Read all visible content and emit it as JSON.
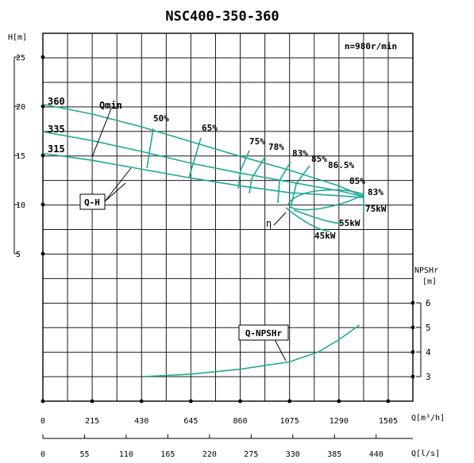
{
  "chart_data": {
    "type": "line",
    "title": "NSC400-350-360",
    "speed": "n=980r/min",
    "head_axis": {
      "unit": "H[m]",
      "ticks": [
        "25",
        "20",
        "15",
        "10",
        "5"
      ]
    },
    "npsh_axis": {
      "unit_top": "NPSHr",
      "unit_bottom": "[m]",
      "ticks": [
        "6",
        "5",
        "4",
        "3"
      ]
    },
    "x_axis_m3h": {
      "unit": "Q[m³/h]",
      "ticks": [
        "0",
        "215",
        "430",
        "645",
        "860",
        "1075",
        "1290",
        "1505"
      ]
    },
    "x_axis_ls": {
      "unit": "Q[l/s]",
      "ticks": [
        "0",
        "55",
        "110",
        "165",
        "220",
        "275",
        "330",
        "385",
        "440"
      ]
    },
    "impeller_labels": [
      "360",
      "335",
      "315"
    ],
    "qmin_label": "Qmin",
    "qh_label": "Q-H",
    "eta_label": "η",
    "npsh_label": "Q-NPSHr",
    "efficiency_labels": [
      "50%",
      "65%",
      "75%",
      "78%",
      "83%",
      "85%",
      "86.5%",
      "85%",
      "83%"
    ],
    "power_labels": [
      "75kW",
      "55kW",
      "45kW"
    ],
    "series": [
      {
        "name": "360",
        "x": [
          0,
          215,
          430,
          645,
          860,
          1075,
          1290,
          1400
        ],
        "y": [
          20.2,
          19.2,
          17.9,
          16.4,
          14.9,
          13.5,
          11.9,
          10.8
        ]
      },
      {
        "name": "335",
        "x": [
          0,
          215,
          430,
          645,
          860,
          1075,
          1290,
          1400
        ],
        "y": [
          17.4,
          16.5,
          15.4,
          14.2,
          13.2,
          12.3,
          11.4,
          10.8
        ]
      },
      {
        "name": "315",
        "x": [
          0,
          215,
          430,
          645,
          860,
          1075,
          1290,
          1400
        ],
        "y": [
          15.2,
          14.5,
          13.6,
          12.7,
          11.9,
          11.2,
          10.9,
          10.7
        ]
      },
      {
        "name": "Q-NPSHr",
        "x": [
          440,
          645,
          860,
          1075,
          1200,
          1290,
          1380
        ],
        "y": [
          3.0,
          3.1,
          3.3,
          3.6,
          4.0,
          4.5,
          5.1
        ]
      }
    ]
  }
}
